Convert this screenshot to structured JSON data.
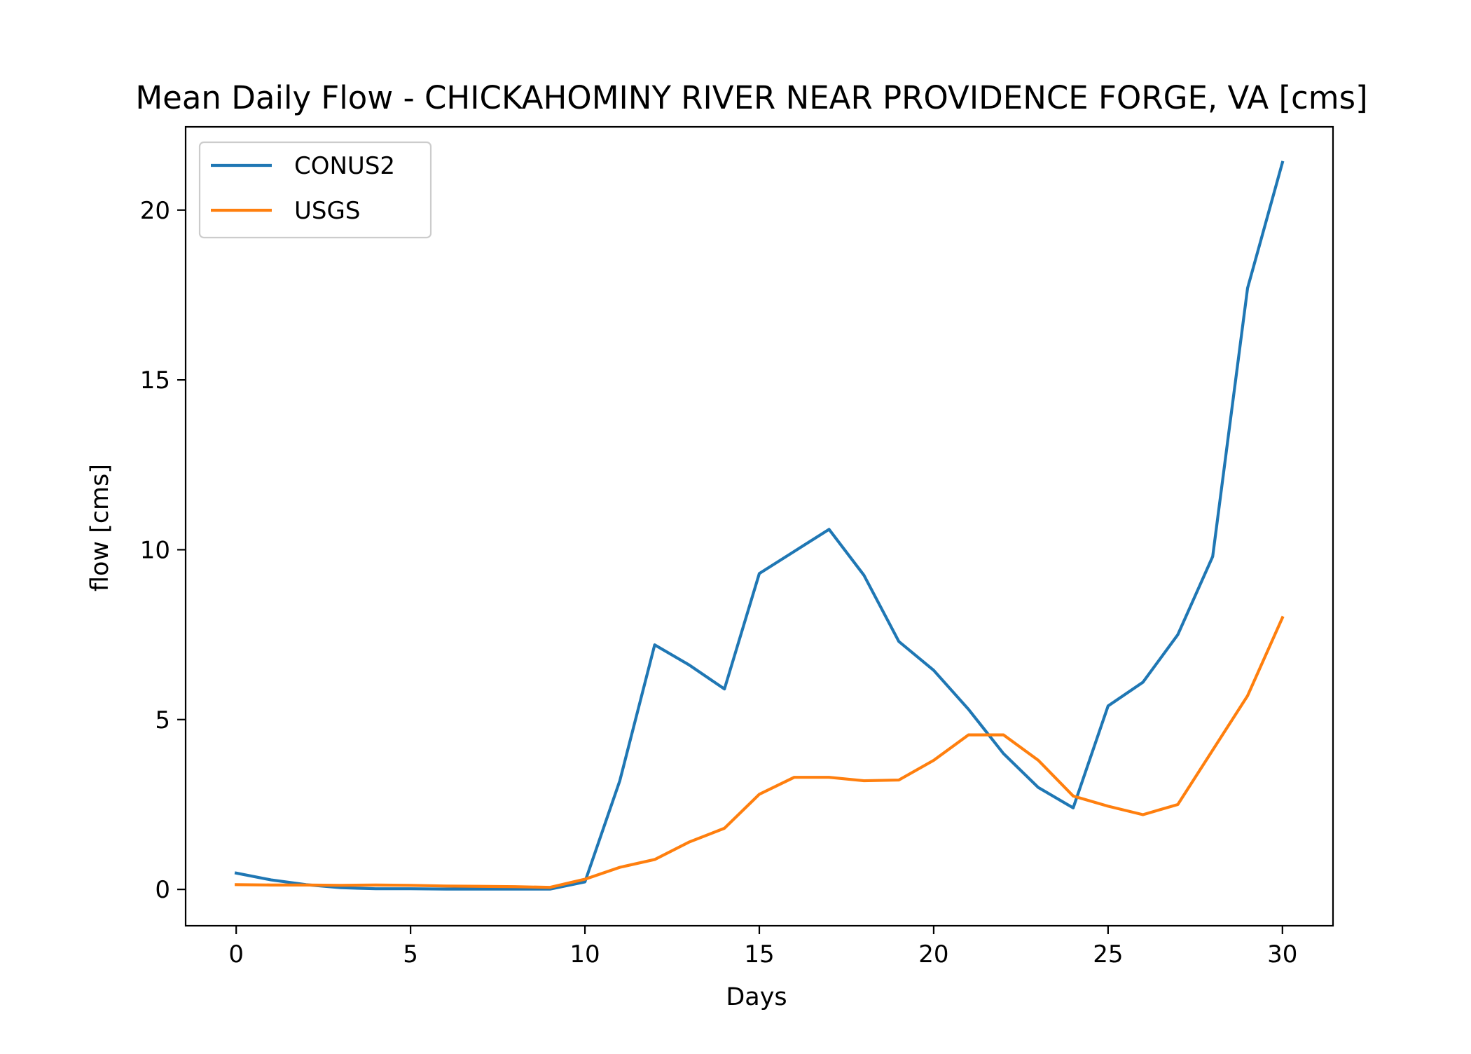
{
  "chart_data": {
    "type": "line",
    "title": "Mean Daily Flow - CHICKAHOMINY RIVER NEAR PROVIDENCE FORGE, VA [cms]",
    "xlabel": "Days",
    "ylabel": "flow [cms]",
    "xlim": [
      -1.45,
      31.45
    ],
    "ylim": [
      -1.07,
      22.45
    ],
    "xticks": [
      0,
      5,
      10,
      15,
      20,
      25,
      30
    ],
    "yticks": [
      0,
      5,
      10,
      15,
      20
    ],
    "grid": false,
    "legend_position": "top-left",
    "x": [
      0,
      1,
      2,
      3,
      4,
      5,
      6,
      7,
      8,
      9,
      10,
      11,
      12,
      13,
      14,
      15,
      16,
      17,
      18,
      19,
      20,
      21,
      22,
      23,
      24,
      25,
      26,
      27,
      28,
      29,
      30
    ],
    "series": [
      {
        "name": "CONUS2",
        "color": "#1f77b4",
        "values": [
          0.48,
          0.28,
          0.14,
          0.05,
          0.02,
          0.02,
          0.01,
          0.01,
          0.01,
          0.01,
          0.22,
          3.2,
          7.2,
          6.6,
          5.9,
          9.3,
          9.95,
          10.6,
          9.25,
          7.3,
          6.45,
          5.3,
          4.0,
          3.0,
          2.4,
          5.4,
          6.1,
          7.5,
          9.8,
          17.7,
          21.4
        ]
      },
      {
        "name": "USGS",
        "color": "#ff7f0e",
        "values": [
          0.14,
          0.13,
          0.13,
          0.12,
          0.13,
          0.12,
          0.1,
          0.09,
          0.08,
          0.06,
          0.3,
          0.65,
          0.88,
          1.4,
          1.8,
          2.8,
          3.3,
          3.3,
          3.2,
          3.22,
          3.8,
          4.55,
          4.55,
          3.8,
          2.75,
          2.45,
          2.2,
          2.5,
          4.1,
          5.7,
          8.0
        ]
      }
    ]
  }
}
